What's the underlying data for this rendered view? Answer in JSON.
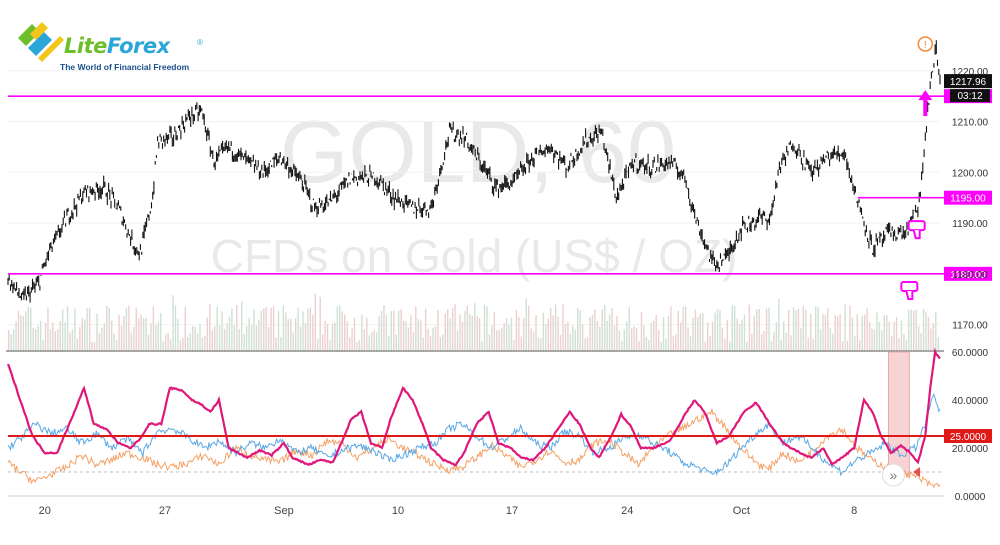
{
  "brand": {
    "name_part1": "Lite",
    "name_part2": "Forex",
    "registered": "®",
    "tagline": "The World of Financial Freedom"
  },
  "watermark": {
    "symbol": "GOLD, 60",
    "description": "CFDs on Gold (US$ / OZ)"
  },
  "colors": {
    "level_line": "#ff00ff",
    "price": "#111111",
    "adx": "#e0177a",
    "plus_di": "#5aa8e6",
    "minus_di": "#f4a267",
    "threshold_line": "#e01818",
    "volume": "#cfe0d4"
  },
  "icons": [
    "alert-icon",
    "arrow-up-icon",
    "thumb-down-icon",
    "fast-forward-icon"
  ],
  "chart_data": [
    {
      "type": "line",
      "panel": "price",
      "ylim": [
        1165,
        1230
      ],
      "yticks": [
        1170,
        1180,
        1190,
        1200,
        1210,
        1220
      ],
      "ytick_labels": [
        "1170.00",
        "1180.00",
        "1190.00",
        "1200.00",
        "1210.00",
        "1220.00"
      ],
      "xticks": [
        {
          "i": 30,
          "label": "20"
        },
        {
          "i": 128,
          "label": "27"
        },
        {
          "i": 225,
          "label": "Sep"
        },
        {
          "i": 318,
          "label": "10"
        },
        {
          "i": 411,
          "label": "17"
        },
        {
          "i": 505,
          "label": "24"
        },
        {
          "i": 598,
          "label": "Oct"
        },
        {
          "i": 690,
          "label": "8"
        }
      ],
      "n_bars": 760,
      "anchors": [
        [
          0,
          1179
        ],
        [
          12,
          1175
        ],
        [
          25,
          1178
        ],
        [
          33,
          1184
        ],
        [
          48,
          1191
        ],
        [
          62,
          1196
        ],
        [
          78,
          1197
        ],
        [
          90,
          1193
        ],
        [
          102,
          1186
        ],
        [
          108,
          1184
        ],
        [
          118,
          1195
        ],
        [
          122,
          1206
        ],
        [
          135,
          1207
        ],
        [
          148,
          1211
        ],
        [
          158,
          1212
        ],
        [
          168,
          1202
        ],
        [
          180,
          1205
        ],
        [
          196,
          1202
        ],
        [
          208,
          1200
        ],
        [
          222,
          1203
        ],
        [
          240,
          1198
        ],
        [
          250,
          1193
        ],
        [
          262,
          1194
        ],
        [
          280,
          1199
        ],
        [
          300,
          1199
        ],
        [
          315,
          1195
        ],
        [
          330,
          1193
        ],
        [
          345,
          1193
        ],
        [
          360,
          1208
        ],
        [
          372,
          1207
        ],
        [
          385,
          1202
        ],
        [
          398,
          1197
        ],
        [
          412,
          1198
        ],
        [
          428,
          1203
        ],
        [
          442,
          1205
        ],
        [
          456,
          1201
        ],
        [
          470,
          1206
        ],
        [
          484,
          1208
        ],
        [
          496,
          1195
        ],
        [
          510,
          1202
        ],
        [
          525,
          1201
        ],
        [
          540,
          1202
        ],
        [
          552,
          1199
        ],
        [
          562,
          1190
        ],
        [
          575,
          1182
        ],
        [
          585,
          1183
        ],
        [
          598,
          1189
        ],
        [
          612,
          1191
        ],
        [
          622,
          1191
        ],
        [
          628,
          1200
        ],
        [
          640,
          1206
        ],
        [
          655,
          1200
        ],
        [
          668,
          1203
        ],
        [
          682,
          1204
        ],
        [
          692,
          1195
        ],
        [
          705,
          1185
        ],
        [
          718,
          1188
        ],
        [
          732,
          1188
        ],
        [
          740,
          1192
        ],
        [
          744,
          1195
        ],
        [
          748,
          1207
        ],
        [
          753,
          1219
        ],
        [
          757,
          1224
        ],
        [
          760,
          1218
        ]
      ],
      "last_price": 1217.96,
      "last_price_label": "1217.96",
      "countdown": "03:12",
      "levels": [
        {
          "value": 1215,
          "label": "1215.00",
          "start_i": 0
        },
        {
          "value": 1195,
          "label": "1195.00",
          "start_i": 693
        },
        {
          "value": 1180,
          "label": "1180.00",
          "start_i": 0
        }
      ],
      "volume_bars": true
    },
    {
      "type": "line",
      "panel": "indicator",
      "ylim": [
        0,
        60
      ],
      "yticks": [
        0,
        20,
        40,
        60
      ],
      "ytick_labels": [
        "0.0000",
        "20.0000",
        "40.0000",
        "60.0000"
      ],
      "threshold": 25,
      "threshold_label": "25.0000",
      "dashed_level": 10,
      "series": [
        {
          "key": "adx",
          "anchors": [
            [
              0,
              55
            ],
            [
              10,
              40
            ],
            [
              20,
              25
            ],
            [
              30,
              18
            ],
            [
              40,
              18
            ],
            [
              50,
              30
            ],
            [
              62,
              45
            ],
            [
              70,
              30
            ],
            [
              80,
              28
            ],
            [
              90,
              22
            ],
            [
              100,
              20
            ],
            [
              108,
              24
            ],
            [
              115,
              30
            ],
            [
              125,
              30
            ],
            [
              132,
              45
            ],
            [
              142,
              44
            ],
            [
              150,
              40
            ],
            [
              158,
              38
            ],
            [
              165,
              35
            ],
            [
              172,
              40
            ],
            [
              180,
              20
            ],
            [
              195,
              16
            ],
            [
              205,
              19
            ],
            [
              215,
              17
            ],
            [
              225,
              22
            ],
            [
              232,
              16
            ],
            [
              245,
              13
            ],
            [
              255,
              15
            ],
            [
              265,
              14
            ],
            [
              280,
              32
            ],
            [
              288,
              35
            ],
            [
              296,
              22
            ],
            [
              305,
              20
            ],
            [
              312,
              32
            ],
            [
              322,
              45
            ],
            [
              330,
              40
            ],
            [
              338,
              30
            ],
            [
              345,
              20
            ],
            [
              355,
              15
            ],
            [
              365,
              13
            ],
            [
              372,
              18
            ],
            [
              382,
              30
            ],
            [
              392,
              35
            ],
            [
              400,
              22
            ],
            [
              410,
              20
            ],
            [
              418,
              16
            ],
            [
              428,
              15
            ],
            [
              438,
              20
            ],
            [
              450,
              29
            ],
            [
              458,
              35
            ],
            [
              466,
              30
            ],
            [
              475,
              20
            ],
            [
              482,
              16
            ],
            [
              492,
              25
            ],
            [
              500,
              34
            ],
            [
              508,
              29
            ],
            [
              516,
              20
            ],
            [
              526,
              20
            ],
            [
              540,
              23
            ],
            [
              552,
              34
            ],
            [
              560,
              40
            ],
            [
              568,
              35
            ],
            [
              578,
              22
            ],
            [
              588,
              25
            ],
            [
              600,
              35
            ],
            [
              610,
              39
            ],
            [
              620,
              31
            ],
            [
              632,
              22
            ],
            [
              642,
              19
            ],
            [
              655,
              16
            ],
            [
              665,
              20
            ],
            [
              672,
              13
            ],
            [
              680,
              16
            ],
            [
              690,
              20
            ],
            [
              698,
              40
            ],
            [
              705,
              35
            ],
            [
              712,
              25
            ],
            [
              720,
              18
            ],
            [
              728,
              21
            ],
            [
              736,
              18
            ],
            [
              742,
              14
            ],
            [
              748,
              25
            ],
            [
              752,
              45
            ],
            [
              756,
              60
            ],
            [
              760,
              57
            ]
          ]
        },
        {
          "key": "plus_di",
          "anchors": [
            [
              0,
              20
            ],
            [
              10,
              24
            ],
            [
              22,
              30
            ],
            [
              35,
              26
            ],
            [
              48,
              28
            ],
            [
              60,
              22
            ],
            [
              72,
              26
            ],
            [
              85,
              20
            ],
            [
              96,
              24
            ],
            [
              110,
              18
            ],
            [
              122,
              27
            ],
            [
              135,
              28
            ],
            [
              148,
              24
            ],
            [
              160,
              20
            ],
            [
              172,
              23
            ],
            [
              185,
              18
            ],
            [
              198,
              22
            ],
            [
              210,
              20
            ],
            [
              222,
              24
            ],
            [
              235,
              18
            ],
            [
              248,
              20
            ],
            [
              260,
              16
            ],
            [
              272,
              19
            ],
            [
              285,
              21
            ],
            [
              298,
              19
            ],
            [
              310,
              15
            ],
            [
              322,
              17
            ],
            [
              335,
              20
            ],
            [
              348,
              22
            ],
            [
              360,
              28
            ],
            [
              370,
              30
            ],
            [
              382,
              25
            ],
            [
              394,
              20
            ],
            [
              406,
              24
            ],
            [
              418,
              28
            ],
            [
              430,
              22
            ],
            [
              442,
              20
            ],
            [
              454,
              27
            ],
            [
              466,
              25
            ],
            [
              478,
              18
            ],
            [
              490,
              20
            ],
            [
              502,
              24
            ],
            [
              514,
              26
            ],
            [
              526,
              22
            ],
            [
              538,
              19
            ],
            [
              550,
              14
            ],
            [
              562,
              12
            ],
            [
              574,
              9
            ],
            [
              586,
              13
            ],
            [
              598,
              20
            ],
            [
              610,
              26
            ],
            [
              620,
              30
            ],
            [
              632,
              22
            ],
            [
              644,
              25
            ],
            [
              656,
              20
            ],
            [
              668,
              14
            ],
            [
              680,
              10
            ],
            [
              692,
              15
            ],
            [
              704,
              18
            ],
            [
              716,
              22
            ],
            [
              728,
              17
            ],
            [
              740,
              20
            ],
            [
              748,
              30
            ],
            [
              754,
              42
            ],
            [
              760,
              35
            ]
          ]
        },
        {
          "key": "minus_di",
          "anchors": [
            [
              0,
              14
            ],
            [
              10,
              10
            ],
            [
              22,
              6
            ],
            [
              35,
              9
            ],
            [
              48,
              12
            ],
            [
              60,
              17
            ],
            [
              72,
              13
            ],
            [
              85,
              15
            ],
            [
              96,
              18
            ],
            [
              110,
              16
            ],
            [
              122,
              13
            ],
            [
              135,
              12
            ],
            [
              148,
              14
            ],
            [
              160,
              17
            ],
            [
              172,
              13
            ],
            [
              185,
              20
            ],
            [
              198,
              17
            ],
            [
              210,
              15
            ],
            [
              222,
              14
            ],
            [
              235,
              19
            ],
            [
              248,
              17
            ],
            [
              260,
              23
            ],
            [
              272,
              22
            ],
            [
              285,
              16
            ],
            [
              298,
              20
            ],
            [
              310,
              24
            ],
            [
              322,
              20
            ],
            [
              335,
              17
            ],
            [
              348,
              13
            ],
            [
              360,
              11
            ],
            [
              370,
              12
            ],
            [
              382,
              16
            ],
            [
              394,
              21
            ],
            [
              406,
              17
            ],
            [
              418,
              12
            ],
            [
              430,
              15
            ],
            [
              442,
              19
            ],
            [
              454,
              14
            ],
            [
              466,
              15
            ],
            [
              478,
              22
            ],
            [
              490,
              23
            ],
            [
              502,
              18
            ],
            [
              514,
              13
            ],
            [
              526,
              20
            ],
            [
              538,
              25
            ],
            [
              550,
              28
            ],
            [
              562,
              32
            ],
            [
              574,
              35
            ],
            [
              586,
              28
            ],
            [
              598,
              20
            ],
            [
              610,
              14
            ],
            [
              620,
              11
            ],
            [
              632,
              18
            ],
            [
              644,
              14
            ],
            [
              656,
              19
            ],
            [
              668,
              25
            ],
            [
              680,
              28
            ],
            [
              692,
              20
            ],
            [
              704,
              15
            ],
            [
              716,
              12
            ],
            [
              728,
              10
            ],
            [
              740,
              8
            ],
            [
              748,
              6
            ],
            [
              754,
              4
            ],
            [
              760,
              5
            ]
          ]
        }
      ]
    }
  ]
}
